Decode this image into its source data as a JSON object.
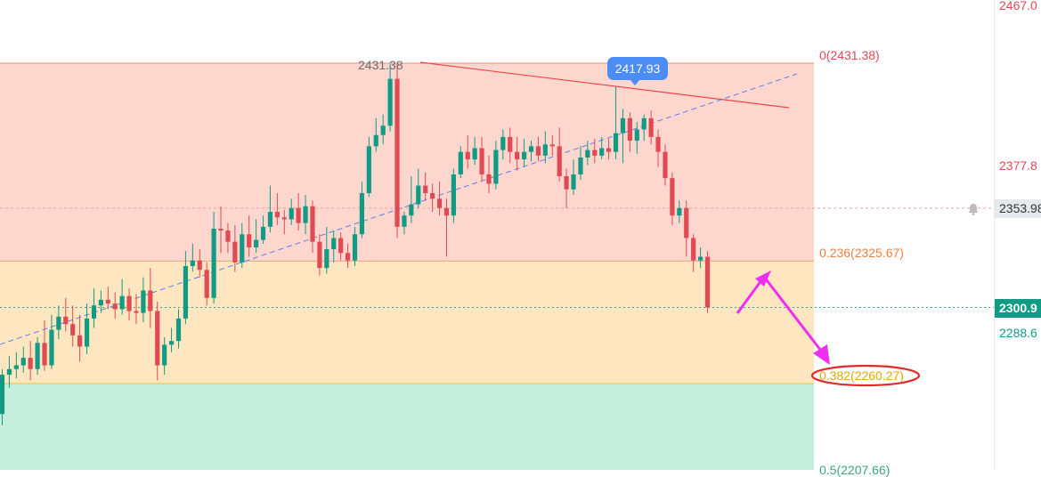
{
  "axis": {
    "top_label": "2467.0",
    "upper_label": "2377.8",
    "crosshair_price": "2353.98",
    "current_price": "2300.9",
    "lower_label": "2288.6"
  },
  "annotations": {
    "peak_callout": "2417.93",
    "peak_label": "2431.38",
    "fib_0": "0(2431.38)",
    "fib_236": "0.236(2325.67)",
    "fib_382": "0.382(2260.27)",
    "fib_bottom_partial": "0.5(2207.66)"
  },
  "colors": {
    "up": "#129b84",
    "down": "#e04a55",
    "zone_top": "#fdd7ce",
    "zone_mid": "#fee6c0",
    "zone_low": "#c6eedc",
    "resistance_line": "#f0454a",
    "trend_line": "#5f7ee9",
    "arrow": "#ee2ff0",
    "ellipse": "#e32a2a",
    "icons": [
      "bell-icon"
    ]
  },
  "chart_data": {
    "type": "candlestick",
    "fib_levels": [
      {
        "ratio": 0,
        "price": 2431.38
      },
      {
        "ratio": 0.236,
        "price": 2325.67
      },
      {
        "ratio": 0.382,
        "price": 2260.27
      },
      {
        "ratio": 0.5,
        "price": 2207.66
      }
    ],
    "current_price": 2300.9,
    "crosshair_price": 2353.98,
    "ylim": [
      2195,
      2470
    ],
    "candles": [
      [
        2244,
        2265,
        2268,
        2238
      ],
      [
        2265,
        2268,
        2275,
        2258
      ],
      [
        2268,
        2270,
        2277,
        2263
      ],
      [
        2270,
        2274,
        2280,
        2266
      ],
      [
        2274,
        2268,
        2283,
        2262
      ],
      [
        2268,
        2282,
        2285,
        2265
      ],
      [
        2282,
        2270,
        2294,
        2267
      ],
      [
        2270,
        2289,
        2297,
        2268
      ],
      [
        2289,
        2296,
        2302,
        2284
      ],
      [
        2296,
        2292,
        2306,
        2288
      ],
      [
        2292,
        2286,
        2302,
        2280
      ],
      [
        2286,
        2280,
        2297,
        2272
      ],
      [
        2280,
        2295,
        2303,
        2276
      ],
      [
        2295,
        2302,
        2311,
        2290
      ],
      [
        2302,
        2305,
        2310,
        2298
      ],
      [
        2305,
        2303,
        2312,
        2300
      ],
      [
        2303,
        2300,
        2309,
        2295
      ],
      [
        2300,
        2307,
        2316,
        2297
      ],
      [
        2307,
        2299,
        2311,
        2294
      ],
      [
        2299,
        2298,
        2308,
        2292
      ],
      [
        2298,
        2310,
        2317,
        2293
      ],
      [
        2310,
        2299,
        2322,
        2290
      ],
      [
        2299,
        2270,
        2304,
        2262
      ],
      [
        2270,
        2281,
        2285,
        2265
      ],
      [
        2281,
        2283,
        2290,
        2277
      ],
      [
        2283,
        2295,
        2300,
        2279
      ],
      [
        2295,
        2323,
        2331,
        2292
      ],
      [
        2323,
        2326,
        2335,
        2320
      ],
      [
        2326,
        2321,
        2332,
        2317
      ],
      [
        2321,
        2306,
        2325,
        2302
      ],
      [
        2306,
        2343,
        2352,
        2303
      ],
      [
        2343,
        2342,
        2355,
        2330
      ],
      [
        2342,
        2336,
        2346,
        2330
      ],
      [
        2336,
        2325,
        2345,
        2320
      ],
      [
        2325,
        2340,
        2346,
        2322
      ],
      [
        2340,
        2333,
        2350,
        2328
      ],
      [
        2333,
        2337,
        2348,
        2330
      ],
      [
        2337,
        2344,
        2350,
        2335
      ],
      [
        2344,
        2352,
        2366,
        2341
      ],
      [
        2352,
        2349,
        2362,
        2345
      ],
      [
        2349,
        2348,
        2353,
        2340
      ],
      [
        2348,
        2354,
        2359,
        2345
      ],
      [
        2354,
        2346,
        2362,
        2342
      ],
      [
        2346,
        2355,
        2361,
        2340
      ],
      [
        2355,
        2336,
        2358,
        2330
      ],
      [
        2336,
        2322,
        2340,
        2318
      ],
      [
        2322,
        2332,
        2344,
        2319
      ],
      [
        2332,
        2338,
        2342,
        2325
      ],
      [
        2338,
        2330,
        2341,
        2326
      ],
      [
        2330,
        2326,
        2335,
        2322
      ],
      [
        2326,
        2340,
        2344,
        2323
      ],
      [
        2340,
        2362,
        2368,
        2338
      ],
      [
        2362,
        2387,
        2392,
        2360
      ],
      [
        2387,
        2393,
        2402,
        2384
      ],
      [
        2393,
        2398,
        2404,
        2388
      ],
      [
        2398,
        2423,
        2431,
        2395
      ],
      [
        2423,
        2344,
        2431,
        2338
      ],
      [
        2344,
        2350,
        2352,
        2340
      ],
      [
        2350,
        2356,
        2371,
        2346
      ],
      [
        2356,
        2366,
        2375,
        2354
      ],
      [
        2366,
        2362,
        2373,
        2358
      ],
      [
        2362,
        2359,
        2367,
        2352
      ],
      [
        2359,
        2354,
        2368,
        2350
      ],
      [
        2354,
        2350,
        2359,
        2328
      ],
      [
        2350,
        2372,
        2375,
        2346
      ],
      [
        2372,
        2384,
        2387,
        2370
      ],
      [
        2384,
        2380,
        2393,
        2375
      ],
      [
        2380,
        2386,
        2392,
        2377
      ],
      [
        2386,
        2372,
        2392,
        2368
      ],
      [
        2372,
        2367,
        2382,
        2362
      ],
      [
        2367,
        2385,
        2390,
        2364
      ],
      [
        2385,
        2392,
        2396,
        2380
      ],
      [
        2392,
        2384,
        2397,
        2378
      ],
      [
        2384,
        2380,
        2392,
        2374
      ],
      [
        2380,
        2384,
        2391,
        2376
      ],
      [
        2384,
        2387,
        2390,
        2379
      ],
      [
        2387,
        2382,
        2392,
        2379
      ],
      [
        2382,
        2388,
        2395,
        2378
      ],
      [
        2388,
        2387,
        2393,
        2382
      ],
      [
        2387,
        2371,
        2397,
        2368
      ],
      [
        2371,
        2364,
        2375,
        2354
      ],
      [
        2364,
        2372,
        2380,
        2361
      ],
      [
        2372,
        2381,
        2387,
        2369
      ],
      [
        2381,
        2385,
        2390,
        2377
      ],
      [
        2385,
        2382,
        2391,
        2378
      ],
      [
        2382,
        2386,
        2392,
        2380
      ],
      [
        2386,
        2384,
        2391,
        2380
      ],
      [
        2384,
        2394,
        2419,
        2380
      ],
      [
        2394,
        2402,
        2407,
        2378
      ],
      [
        2402,
        2390,
        2405,
        2384
      ],
      [
        2390,
        2396,
        2400,
        2383
      ],
      [
        2396,
        2402,
        2404,
        2390
      ],
      [
        2402,
        2392,
        2406,
        2388
      ],
      [
        2392,
        2384,
        2396,
        2376
      ],
      [
        2384,
        2370,
        2388,
        2366
      ],
      [
        2370,
        2350,
        2373,
        2345
      ],
      [
        2350,
        2354,
        2358,
        2346
      ],
      [
        2354,
        2338,
        2358,
        2328
      ],
      [
        2338,
        2326,
        2340,
        2320
      ],
      [
        2326,
        2328,
        2333,
        2322
      ],
      [
        2328,
        2301,
        2331,
        2298
      ]
    ]
  }
}
